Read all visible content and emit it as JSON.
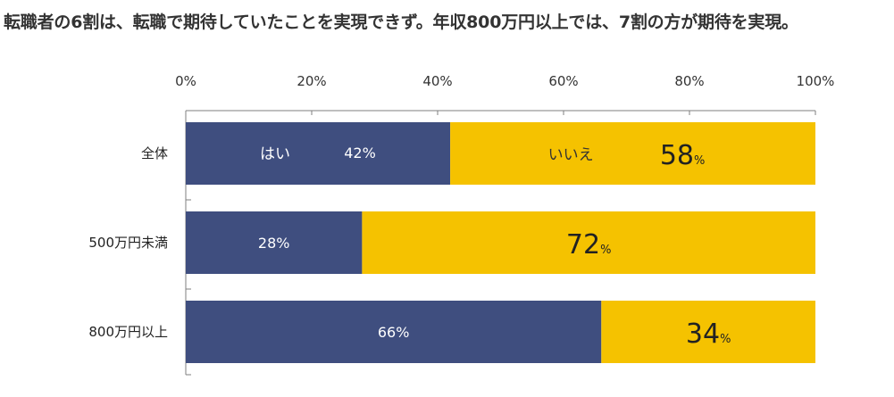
{
  "headline": "転職者の6割は、転職で期待していたことを実現できず。年収800万円以上では、7割の方が期待を実現。",
  "chart_data": {
    "type": "bar",
    "orientation": "horizontal",
    "stacked": true,
    "categories": [
      "全体",
      "500万円未満",
      "800万円以上"
    ],
    "series": [
      {
        "name": "はい",
        "values": [
          42,
          28,
          66
        ],
        "color": "#3f4e7f"
      },
      {
        "name": "いいえ",
        "values": [
          58,
          72,
          34
        ],
        "color": "#f5c200"
      }
    ],
    "xlim": [
      0,
      100
    ],
    "xticks": [
      "0%",
      "20%",
      "40%",
      "60%",
      "80%",
      "100%"
    ],
    "unit": "%",
    "legend": "inline",
    "grid": false
  }
}
